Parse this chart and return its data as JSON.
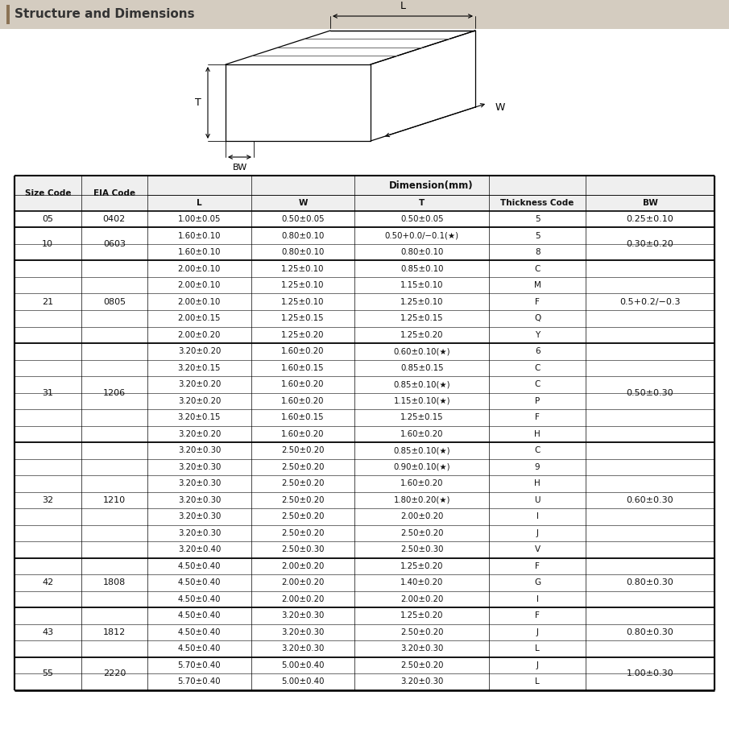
{
  "title": "Structure and Dimensions",
  "title_bar_color": "#d4ccc0",
  "title_bar_left_color": "#8B7355",
  "rows": [
    {
      "size": "05",
      "eia": "0402",
      "L": "1.00±0.05",
      "W": "0.50±0.05",
      "T": "0.50±0.05",
      "TC": "5",
      "BW": "0.25±0.10",
      "size_span": 1,
      "eia_span": 1,
      "bw_span": 1
    },
    {
      "size": "10",
      "eia": "0603",
      "L": "1.60±0.10",
      "W": "0.80±0.10",
      "T": "0.50+0.0/−0.1(★)",
      "TC": "5",
      "BW": "0.30±0.20",
      "size_span": 2,
      "eia_span": 2,
      "bw_span": 2
    },
    {
      "size": "",
      "eia": "",
      "L": "1.60±0.10",
      "W": "0.80±0.10",
      "T": "0.80±0.10",
      "TC": "8",
      "BW": "",
      "size_span": 0,
      "eia_span": 0,
      "bw_span": 0
    },
    {
      "size": "21",
      "eia": "0805",
      "L": "2.00±0.10",
      "W": "1.25±0.10",
      "T": "0.85±0.10",
      "TC": "C",
      "BW": "0.5+0.2/−0.3",
      "size_span": 5,
      "eia_span": 5,
      "bw_span": 5
    },
    {
      "size": "",
      "eia": "",
      "L": "2.00±0.10",
      "W": "1.25±0.10",
      "T": "1.15±0.10",
      "TC": "M",
      "BW": "",
      "size_span": 0,
      "eia_span": 0,
      "bw_span": 0
    },
    {
      "size": "",
      "eia": "",
      "L": "2.00±0.10",
      "W": "1.25±0.10",
      "T": "1.25±0.10",
      "TC": "F",
      "BW": "",
      "size_span": 0,
      "eia_span": 0,
      "bw_span": 0
    },
    {
      "size": "",
      "eia": "",
      "L": "2.00±0.15",
      "W": "1.25±0.15",
      "T": "1.25±0.15",
      "TC": "Q",
      "BW": "",
      "size_span": 0,
      "eia_span": 0,
      "bw_span": 0
    },
    {
      "size": "",
      "eia": "",
      "L": "2.00±0.20",
      "W": "1.25±0.20",
      "T": "1.25±0.20",
      "TC": "Y",
      "BW": "",
      "size_span": 0,
      "eia_span": 0,
      "bw_span": 0
    },
    {
      "size": "31",
      "eia": "1206",
      "L": "3.20±0.20",
      "W": "1.60±0.20",
      "T": "0.60±0.10(★)",
      "TC": "6",
      "BW": "0.50±0.30",
      "size_span": 6,
      "eia_span": 6,
      "bw_span": 6
    },
    {
      "size": "",
      "eia": "",
      "L": "3.20±0.15",
      "W": "1.60±0.15",
      "T": "0.85±0.15",
      "TC": "C",
      "BW": "",
      "size_span": 0,
      "eia_span": 0,
      "bw_span": 0
    },
    {
      "size": "",
      "eia": "",
      "L": "3.20±0.20",
      "W": "1.60±0.20",
      "T": "0.85±0.10(★)",
      "TC": "C",
      "BW": "",
      "size_span": 0,
      "eia_span": 0,
      "bw_span": 0
    },
    {
      "size": "",
      "eia": "",
      "L": "3.20±0.20",
      "W": "1.60±0.20",
      "T": "1.15±0.10(★)",
      "TC": "P",
      "BW": "",
      "size_span": 0,
      "eia_span": 0,
      "bw_span": 0
    },
    {
      "size": "",
      "eia": "",
      "L": "3.20±0.15",
      "W": "1.60±0.15",
      "T": "1.25±0.15",
      "TC": "F",
      "BW": "",
      "size_span": 0,
      "eia_span": 0,
      "bw_span": 0
    },
    {
      "size": "",
      "eia": "",
      "L": "3.20±0.20",
      "W": "1.60±0.20",
      "T": "1.60±0.20",
      "TC": "H",
      "BW": "",
      "size_span": 0,
      "eia_span": 0,
      "bw_span": 0
    },
    {
      "size": "32",
      "eia": "1210",
      "L": "3.20±0.30",
      "W": "2.50±0.20",
      "T": "0.85±0.10(★)",
      "TC": "C",
      "BW": "0.60±0.30",
      "size_span": 7,
      "eia_span": 7,
      "bw_span": 7
    },
    {
      "size": "",
      "eia": "",
      "L": "3.20±0.30",
      "W": "2.50±0.20",
      "T": "0.90±0.10(★)",
      "TC": "9",
      "BW": "",
      "size_span": 0,
      "eia_span": 0,
      "bw_span": 0
    },
    {
      "size": "",
      "eia": "",
      "L": "3.20±0.30",
      "W": "2.50±0.20",
      "T": "1.60±0.20",
      "TC": "H",
      "BW": "",
      "size_span": 0,
      "eia_span": 0,
      "bw_span": 0
    },
    {
      "size": "",
      "eia": "",
      "L": "3.20±0.30",
      "W": "2.50±0.20",
      "T": "1.80±0.20(★)",
      "TC": "U",
      "BW": "",
      "size_span": 0,
      "eia_span": 0,
      "bw_span": 0
    },
    {
      "size": "",
      "eia": "",
      "L": "3.20±0.30",
      "W": "2.50±0.20",
      "T": "2.00±0.20",
      "TC": "I",
      "BW": "",
      "size_span": 0,
      "eia_span": 0,
      "bw_span": 0
    },
    {
      "size": "",
      "eia": "",
      "L": "3.20±0.30",
      "W": "2.50±0.20",
      "T": "2.50±0.20",
      "TC": "J",
      "BW": "",
      "size_span": 0,
      "eia_span": 0,
      "bw_span": 0
    },
    {
      "size": "",
      "eia": "",
      "L": "3.20±0.40",
      "W": "2.50±0.30",
      "T": "2.50±0.30",
      "TC": "V",
      "BW": "",
      "size_span": 0,
      "eia_span": 0,
      "bw_span": 0
    },
    {
      "size": "42",
      "eia": "1808",
      "L": "4.50±0.40",
      "W": "2.00±0.20",
      "T": "1.25±0.20",
      "TC": "F",
      "BW": "0.80±0.30",
      "size_span": 3,
      "eia_span": 3,
      "bw_span": 3
    },
    {
      "size": "",
      "eia": "",
      "L": "4.50±0.40",
      "W": "2.00±0.20",
      "T": "1.40±0.20",
      "TC": "G",
      "BW": "",
      "size_span": 0,
      "eia_span": 0,
      "bw_span": 0
    },
    {
      "size": "",
      "eia": "",
      "L": "4.50±0.40",
      "W": "2.00±0.20",
      "T": "2.00±0.20",
      "TC": "I",
      "BW": "",
      "size_span": 0,
      "eia_span": 0,
      "bw_span": 0
    },
    {
      "size": "43",
      "eia": "1812",
      "L": "4.50±0.40",
      "W": "3.20±0.30",
      "T": "1.25±0.20",
      "TC": "F",
      "BW": "0.80±0.30",
      "size_span": 3,
      "eia_span": 3,
      "bw_span": 3
    },
    {
      "size": "",
      "eia": "",
      "L": "4.50±0.40",
      "W": "3.20±0.30",
      "T": "2.50±0.20",
      "TC": "J",
      "BW": "",
      "size_span": 0,
      "eia_span": 0,
      "bw_span": 0
    },
    {
      "size": "",
      "eia": "",
      "L": "4.50±0.40",
      "W": "3.20±0.30",
      "T": "3.20±0.30",
      "TC": "L",
      "BW": "",
      "size_span": 0,
      "eia_span": 0,
      "bw_span": 0
    },
    {
      "size": "55",
      "eia": "2220",
      "L": "5.70±0.40",
      "W": "5.00±0.40",
      "T": "2.50±0.20",
      "TC": "J",
      "BW": "1.00±0.30",
      "size_span": 2,
      "eia_span": 2,
      "bw_span": 2
    },
    {
      "size": "",
      "eia": "",
      "L": "5.70±0.40",
      "W": "5.00±0.40",
      "T": "3.20±0.30",
      "TC": "L",
      "BW": "",
      "size_span": 0,
      "eia_span": 0,
      "bw_span": 0
    }
  ],
  "group_borders": [
    0,
    1,
    3,
    8,
    14,
    21,
    24,
    27,
    29
  ]
}
